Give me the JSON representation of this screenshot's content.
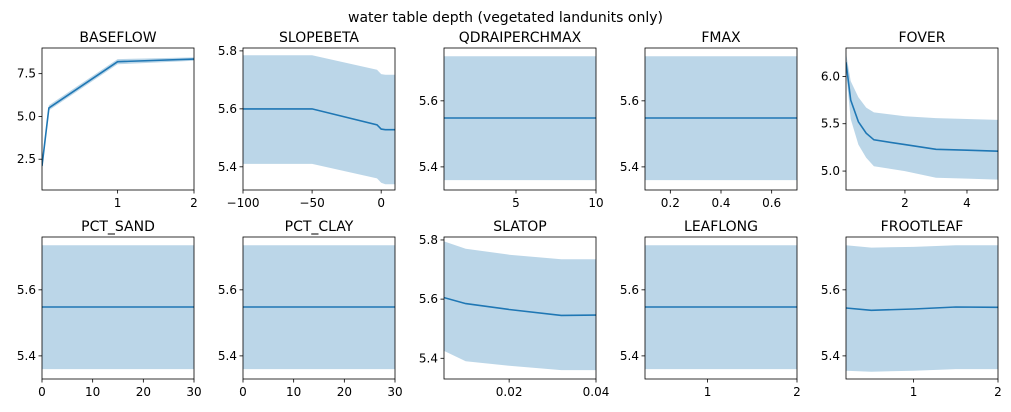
{
  "suptitle": "water table depth (vegetated landunits only)",
  "colors": {
    "line": "#1f77b4",
    "band": "#1f77b4"
  },
  "chart_data": [
    {
      "type": "line",
      "title": "BASEFLOW",
      "xlim": [
        0.01,
        2
      ],
      "ylim": [
        0.7,
        9.0
      ],
      "xticks": [
        1,
        2
      ],
      "xtick_labels": [
        "1",
        "2"
      ],
      "yticks": [
        2.5,
        5.0,
        7.5
      ],
      "ytick_labels": [
        "2.5",
        "5.0",
        "7.5"
      ],
      "x": [
        0.01,
        0.1,
        1.0,
        2.0
      ],
      "y": [
        2.1,
        5.5,
        8.2,
        8.35
      ],
      "y_lower": [
        1.9,
        5.35,
        8.05,
        8.25
      ],
      "y_upper": [
        2.3,
        5.65,
        8.35,
        8.45
      ]
    },
    {
      "type": "line",
      "title": "SLOPEBETA",
      "xlim": [
        -100,
        10
      ],
      "ylim": [
        5.32,
        5.81
      ],
      "xticks": [
        -100,
        -50,
        0
      ],
      "xtick_labels": [
        "−100",
        "−50",
        "0"
      ],
      "yticks": [
        5.4,
        5.6,
        5.8
      ],
      "ytick_labels": [
        "5.4",
        "5.6",
        "5.8"
      ],
      "x": [
        -100,
        -50,
        -3,
        0,
        3,
        10
      ],
      "y": [
        5.6,
        5.6,
        5.545,
        5.53,
        5.528,
        5.528
      ],
      "y_lower": [
        5.41,
        5.41,
        5.36,
        5.345,
        5.34,
        5.34
      ],
      "y_upper": [
        5.785,
        5.785,
        5.735,
        5.72,
        5.718,
        5.718
      ]
    },
    {
      "type": "line",
      "title": "QDRAIPERCHMAX",
      "xlim": [
        0.5,
        10
      ],
      "ylim": [
        5.33,
        5.76
      ],
      "xticks": [
        5,
        10
      ],
      "xtick_labels": [
        "5",
        "10"
      ],
      "yticks": [
        5.4,
        5.6
      ],
      "ytick_labels": [
        "5.4",
        "5.6"
      ],
      "x": [
        0.5,
        10
      ],
      "y": [
        5.548,
        5.548
      ],
      "y_lower": [
        5.36,
        5.36
      ],
      "y_upper": [
        5.735,
        5.735
      ]
    },
    {
      "type": "line",
      "title": "FMAX",
      "xlim": [
        0.1,
        0.7
      ],
      "ylim": [
        5.33,
        5.76
      ],
      "xticks": [
        0.2,
        0.4,
        0.6
      ],
      "xtick_labels": [
        "0.2",
        "0.4",
        "0.6"
      ],
      "yticks": [
        5.4,
        5.6
      ],
      "ytick_labels": [
        "5.4",
        "5.6"
      ],
      "x": [
        0.1,
        0.7
      ],
      "y": [
        5.548,
        5.548
      ],
      "y_lower": [
        5.36,
        5.36
      ],
      "y_upper": [
        5.735,
        5.735
      ]
    },
    {
      "type": "line",
      "title": "FOVER",
      "xlim": [
        0.1,
        5
      ],
      "ylim": [
        4.8,
        6.3
      ],
      "xticks": [
        2,
        4
      ],
      "xtick_labels": [
        "2",
        "4"
      ],
      "yticks": [
        5.0,
        5.5,
        6.0
      ],
      "ytick_labels": [
        "5.0",
        "5.5",
        "6.0"
      ],
      "x": [
        0.1,
        0.25,
        0.5,
        0.75,
        1,
        2,
        3,
        4,
        5
      ],
      "y": [
        6.15,
        5.75,
        5.52,
        5.4,
        5.33,
        5.28,
        5.23,
        5.22,
        5.21
      ],
      "y_lower": [
        6.05,
        5.55,
        5.28,
        5.14,
        5.05,
        5.0,
        4.93,
        4.92,
        4.91
      ],
      "y_upper": [
        6.25,
        5.95,
        5.78,
        5.67,
        5.62,
        5.58,
        5.56,
        5.55,
        5.54
      ]
    },
    {
      "type": "line",
      "title": "PCT_SAND",
      "xlim": [
        0,
        30
      ],
      "ylim": [
        5.33,
        5.76
      ],
      "xticks": [
        0,
        10,
        20,
        30
      ],
      "xtick_labels": [
        "0",
        "10",
        "20",
        "30"
      ],
      "yticks": [
        5.4,
        5.6
      ],
      "ytick_labels": [
        "5.4",
        "5.6"
      ],
      "x": [
        0,
        30
      ],
      "y": [
        5.548,
        5.548
      ],
      "y_lower": [
        5.36,
        5.36
      ],
      "y_upper": [
        5.735,
        5.735
      ]
    },
    {
      "type": "line",
      "title": "PCT_CLAY",
      "xlim": [
        0,
        30
      ],
      "ylim": [
        5.33,
        5.76
      ],
      "xticks": [
        0,
        10,
        20,
        30
      ],
      "xtick_labels": [
        "0",
        "10",
        "20",
        "30"
      ],
      "yticks": [
        5.4,
        5.6
      ],
      "ytick_labels": [
        "5.4",
        "5.6"
      ],
      "x": [
        0,
        30
      ],
      "y": [
        5.548,
        5.548
      ],
      "y_lower": [
        5.36,
        5.36
      ],
      "y_upper": [
        5.735,
        5.735
      ]
    },
    {
      "type": "line",
      "title": "SLATOP",
      "xlim": [
        0.005,
        0.04
      ],
      "ylim": [
        5.33,
        5.81
      ],
      "xticks": [
        0.02,
        0.04
      ],
      "xtick_labels": [
        "0.02",
        "0.04"
      ],
      "yticks": [
        5.4,
        5.6,
        5.8
      ],
      "ytick_labels": [
        "5.4",
        "5.6",
        "5.8"
      ],
      "x": [
        0.005,
        0.01,
        0.02,
        0.032,
        0.04
      ],
      "y": [
        5.605,
        5.585,
        5.565,
        5.545,
        5.546
      ],
      "y_lower": [
        5.425,
        5.39,
        5.375,
        5.36,
        5.36
      ],
      "y_upper": [
        5.795,
        5.77,
        5.75,
        5.735,
        5.735
      ]
    },
    {
      "type": "line",
      "title": "LEAFLONG",
      "xlim": [
        0.3,
        2
      ],
      "ylim": [
        5.33,
        5.76
      ],
      "xticks": [
        1,
        2
      ],
      "xtick_labels": [
        "1",
        "2"
      ],
      "yticks": [
        5.4,
        5.6
      ],
      "ytick_labels": [
        "5.4",
        "5.6"
      ],
      "x": [
        0.3,
        2
      ],
      "y": [
        5.548,
        5.548
      ],
      "y_lower": [
        5.36,
        5.36
      ],
      "y_upper": [
        5.735,
        5.735
      ]
    },
    {
      "type": "line",
      "title": "FROOTLEAF",
      "xlim": [
        0.2,
        2
      ],
      "ylim": [
        5.33,
        5.76
      ],
      "xticks": [
        1,
        2
      ],
      "xtick_labels": [
        "1",
        "2"
      ],
      "yticks": [
        5.4,
        5.6
      ],
      "ytick_labels": [
        "5.4",
        "5.6"
      ],
      "x": [
        0.2,
        0.5,
        1.0,
        1.5,
        2.0
      ],
      "y": [
        5.545,
        5.538,
        5.542,
        5.548,
        5.547
      ],
      "y_lower": [
        5.355,
        5.352,
        5.355,
        5.36,
        5.36
      ],
      "y_upper": [
        5.735,
        5.728,
        5.73,
        5.735,
        5.735
      ]
    }
  ]
}
